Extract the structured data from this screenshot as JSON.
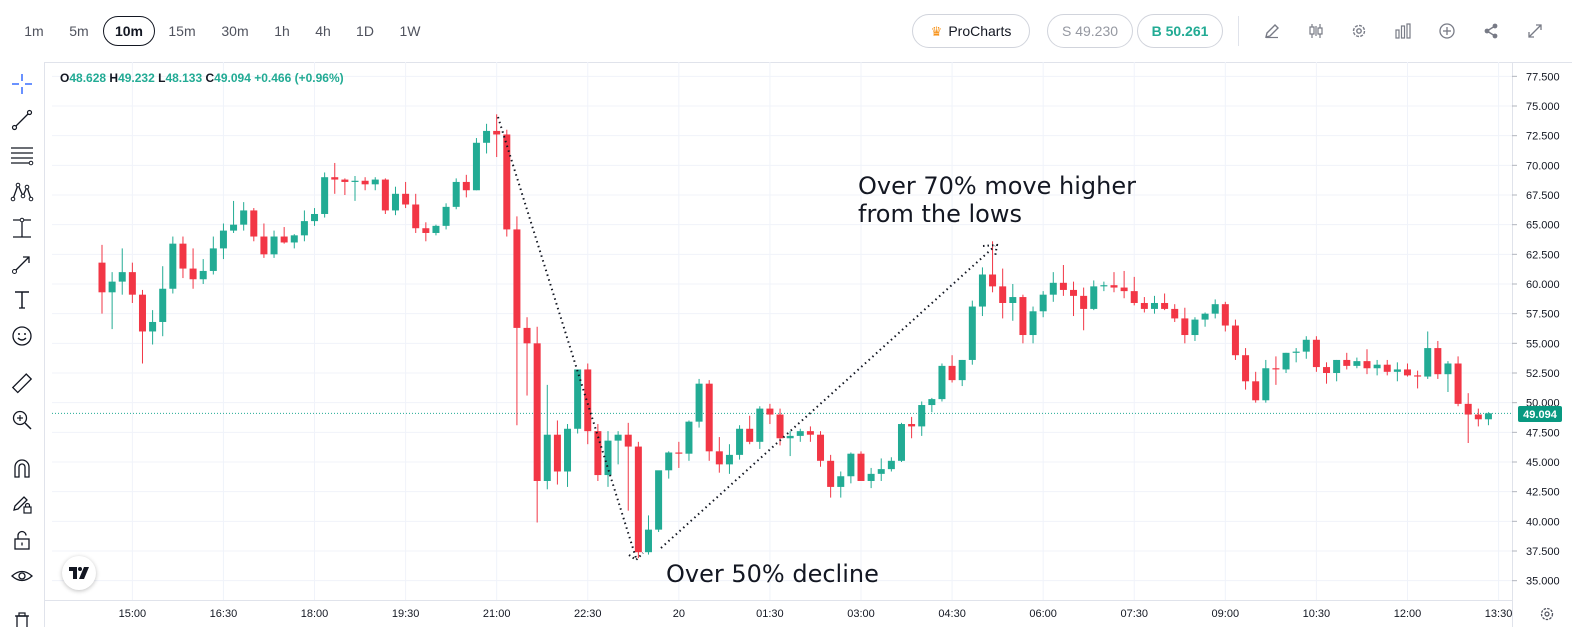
{
  "timeframes": [
    "1m",
    "5m",
    "10m",
    "15m",
    "30m",
    "1h",
    "4h",
    "1D",
    "1W"
  ],
  "active_timeframe": "10m",
  "procharts_label": "ProCharts",
  "sell_label": "S 49.230",
  "buy_label": "B 50.261",
  "ohlc": {
    "o_key": "O",
    "o": "48.628",
    "h_key": "H",
    "h": "49.232",
    "l_key": "L",
    "l": "48.133",
    "c_key": "C",
    "c": "49.094",
    "change": "+0.466 (+0.96%)"
  },
  "colors": {
    "up": "#22ab94",
    "down": "#f23645",
    "accent": "#089981",
    "grid": "#f0f3fa",
    "text": "#131722"
  },
  "toolbar_icons": [
    "pencil-icon",
    "candles-icon",
    "gear-icon",
    "bar-stats-icon",
    "plus-circle-icon",
    "share-icon",
    "fullscreen-icon"
  ],
  "left_tools": [
    "crosshair-icon",
    "trendline-icon",
    "fib-lines-icon",
    "pattern-icon",
    "measure-icon",
    "arrow-icon",
    "text-icon",
    "emoji-icon",
    "ruler-icon",
    "zoom-in-icon",
    "magnet-icon",
    "lock-pencil-icon",
    "lock-icon",
    "eye-icon",
    "trash-icon"
  ],
  "annotations": {
    "decline": "Over 50% decline",
    "rise_line1": "Over 70% move higher",
    "rise_line2": "from the lows"
  },
  "chart_data": {
    "type": "candlestick",
    "y_ticks": [
      "77.500",
      "75.000",
      "72.500",
      "70.000",
      "67.500",
      "65.000",
      "62.500",
      "60.000",
      "57.500",
      "55.000",
      "52.500",
      "50.000",
      "47.500",
      "45.000",
      "42.500",
      "40.000",
      "37.500",
      "35.000"
    ],
    "ylim": [
      33.0,
      78.5
    ],
    "x_ticks": [
      "15:00",
      "16:30",
      "18:00",
      "19:30",
      "21:00",
      "22:30",
      "20",
      "01:30",
      "03:00",
      "04:30",
      "06:00",
      "07:30",
      "09:00",
      "10:30",
      "12:00",
      "13:30"
    ],
    "x_tick_first_bar": 3,
    "bars_per_tick": 9,
    "last_price": 49.094,
    "last_price_label": "49.094",
    "ohlc": [
      [
        61.8,
        63.3,
        57.5,
        59.3
      ],
      [
        59.3,
        61.0,
        56.2,
        60.2
      ],
      [
        60.2,
        63.0,
        59.1,
        61.0
      ],
      [
        61.0,
        61.8,
        58.4,
        59.1
      ],
      [
        59.1,
        59.5,
        53.3,
        56.0
      ],
      [
        56.0,
        57.8,
        54.9,
        56.8
      ],
      [
        56.8,
        61.5,
        55.6,
        59.6
      ],
      [
        59.6,
        64.0,
        59.2,
        63.4
      ],
      [
        63.4,
        64.0,
        60.5,
        61.3
      ],
      [
        61.3,
        63.0,
        59.6,
        60.4
      ],
      [
        60.4,
        62.1,
        60.0,
        61.1
      ],
      [
        61.1,
        64.0,
        60.8,
        63.0
      ],
      [
        63.0,
        65.1,
        62.1,
        64.5
      ],
      [
        64.5,
        67.0,
        64.3,
        65.0
      ],
      [
        65.0,
        66.9,
        64.5,
        66.2
      ],
      [
        66.2,
        66.4,
        63.6,
        64.0
      ],
      [
        64.0,
        65.1,
        62.2,
        62.5
      ],
      [
        62.5,
        64.5,
        62.2,
        64.0
      ],
      [
        64.0,
        64.8,
        63.4,
        63.5
      ],
      [
        63.5,
        64.2,
        63.0,
        64.1
      ],
      [
        64.1,
        66.2,
        63.6,
        65.3
      ],
      [
        65.3,
        66.4,
        64.9,
        65.9
      ],
      [
        65.9,
        69.4,
        65.6,
        69.0
      ],
      [
        69.0,
        70.2,
        67.6,
        68.8
      ],
      [
        68.8,
        68.9,
        67.5,
        68.6
      ],
      [
        68.6,
        69.1,
        67.0,
        68.7
      ],
      [
        68.7,
        69.0,
        67.9,
        68.4
      ],
      [
        68.4,
        69.0,
        67.9,
        68.8
      ],
      [
        68.8,
        68.9,
        65.9,
        66.2
      ],
      [
        66.2,
        68.2,
        65.8,
        67.6
      ],
      [
        67.6,
        68.6,
        66.4,
        66.7
      ],
      [
        66.7,
        67.6,
        64.3,
        64.7
      ],
      [
        64.7,
        65.2,
        63.6,
        64.3
      ],
      [
        64.3,
        65.0,
        64.1,
        64.9
      ],
      [
        64.9,
        66.8,
        64.6,
        66.5
      ],
      [
        66.5,
        68.9,
        66.3,
        68.6
      ],
      [
        68.6,
        69.2,
        67.3,
        67.9
      ],
      [
        67.9,
        72.3,
        67.9,
        71.9
      ],
      [
        71.9,
        73.5,
        71.0,
        72.9
      ],
      [
        72.9,
        74.3,
        70.7,
        72.6
      ],
      [
        72.6,
        73.0,
        64.0,
        64.6
      ],
      [
        64.6,
        65.7,
        48.1,
        56.3
      ],
      [
        56.3,
        57.2,
        50.6,
        55.0
      ],
      [
        55.0,
        56.4,
        39.9,
        43.4
      ],
      [
        43.4,
        51.5,
        42.7,
        47.3
      ],
      [
        47.3,
        48.5,
        43.1,
        44.2
      ],
      [
        44.2,
        48.2,
        42.9,
        47.8
      ],
      [
        47.8,
        52.5,
        47.4,
        52.8
      ],
      [
        52.8,
        53.3,
        46.5,
        47.6
      ],
      [
        47.6,
        48.2,
        43.4,
        43.9
      ],
      [
        43.9,
        47.6,
        42.9,
        46.8
      ],
      [
        46.8,
        47.6,
        44.8,
        47.3
      ],
      [
        47.3,
        48.3,
        40.9,
        46.3
      ],
      [
        46.3,
        46.7,
        36.9,
        37.4
      ],
      [
        37.4,
        40.5,
        37.2,
        39.3
      ],
      [
        39.3,
        44.1,
        39.1,
        44.3
      ],
      [
        44.3,
        45.9,
        43.6,
        45.8
      ],
      [
        45.8,
        46.7,
        44.5,
        45.7
      ],
      [
        45.7,
        48.5,
        45.1,
        48.4
      ],
      [
        48.4,
        52.0,
        47.9,
        51.6
      ],
      [
        51.6,
        51.9,
        45.1,
        45.9
      ],
      [
        45.9,
        47.1,
        44.1,
        44.8
      ],
      [
        44.8,
        46.5,
        44.0,
        45.6
      ],
      [
        45.6,
        48.1,
        45.2,
        47.8
      ],
      [
        47.8,
        48.9,
        46.5,
        46.7
      ],
      [
        46.7,
        49.7,
        46.1,
        49.5
      ],
      [
        49.5,
        49.9,
        48.2,
        49.0
      ],
      [
        49.0,
        49.5,
        46.4,
        47.0
      ],
      [
        47.0,
        47.6,
        45.5,
        47.2
      ],
      [
        47.2,
        47.8,
        46.7,
        47.6
      ],
      [
        47.6,
        48.0,
        46.7,
        47.3
      ],
      [
        47.3,
        47.6,
        44.6,
        45.1
      ],
      [
        45.1,
        45.6,
        42.0,
        42.9
      ],
      [
        42.9,
        44.2,
        42.0,
        43.8
      ],
      [
        43.8,
        45.8,
        43.2,
        45.7
      ],
      [
        45.7,
        45.9,
        43.4,
        43.4
      ],
      [
        43.4,
        44.5,
        42.8,
        44.0
      ],
      [
        44.0,
        45.3,
        43.4,
        44.4
      ],
      [
        44.4,
        45.4,
        44.2,
        45.1
      ],
      [
        45.1,
        48.3,
        45.0,
        48.2
      ],
      [
        48.2,
        48.8,
        47.0,
        48.0
      ],
      [
        48.0,
        50.1,
        47.2,
        49.8
      ],
      [
        49.8,
        50.4,
        49.2,
        50.3
      ],
      [
        50.3,
        53.3,
        50.1,
        53.1
      ],
      [
        53.1,
        54.0,
        51.7,
        51.9
      ],
      [
        51.9,
        53.6,
        51.4,
        53.6
      ],
      [
        53.6,
        58.6,
        53.2,
        58.1
      ],
      [
        58.1,
        61.4,
        57.3,
        60.8
      ],
      [
        60.8,
        63.6,
        59.3,
        59.8
      ],
      [
        59.8,
        61.3,
        57.1,
        58.4
      ],
      [
        58.4,
        60.0,
        56.9,
        58.9
      ],
      [
        58.9,
        59.1,
        55.0,
        55.7
      ],
      [
        55.7,
        58.1,
        55.0,
        57.7
      ],
      [
        57.7,
        59.4,
        57.2,
        59.1
      ],
      [
        59.1,
        61.0,
        58.5,
        60.1
      ],
      [
        60.1,
        61.6,
        59.0,
        59.5
      ],
      [
        59.5,
        60.2,
        57.3,
        59.0
      ],
      [
        59.0,
        59.7,
        56.1,
        57.9
      ],
      [
        57.9,
        60.3,
        57.8,
        59.8
      ],
      [
        59.8,
        60.2,
        59.4,
        59.9
      ],
      [
        59.9,
        61.0,
        59.3,
        59.7
      ],
      [
        59.7,
        61.1,
        58.8,
        59.4
      ],
      [
        59.4,
        60.6,
        58.2,
        58.4
      ],
      [
        58.4,
        58.9,
        57.6,
        57.9
      ],
      [
        57.9,
        59.0,
        57.5,
        58.4
      ],
      [
        58.4,
        59.2,
        57.8,
        57.9
      ],
      [
        57.9,
        58.3,
        56.8,
        57.1
      ],
      [
        57.1,
        58.0,
        55.0,
        55.7
      ],
      [
        55.7,
        57.2,
        55.2,
        57.0
      ],
      [
        57.0,
        57.6,
        56.4,
        57.5
      ],
      [
        57.5,
        58.7,
        57.1,
        58.3
      ],
      [
        58.3,
        58.5,
        56.0,
        56.5
      ],
      [
        56.5,
        57.0,
        53.6,
        54.0
      ],
      [
        54.0,
        54.6,
        51.1,
        51.8
      ],
      [
        51.8,
        52.6,
        50.0,
        50.2
      ],
      [
        50.2,
        53.6,
        50.0,
        52.9
      ],
      [
        52.9,
        53.9,
        51.5,
        52.8
      ],
      [
        52.8,
        54.2,
        52.5,
        54.2
      ],
      [
        54.2,
        54.6,
        53.4,
        54.3
      ],
      [
        54.3,
        55.6,
        53.7,
        55.3
      ],
      [
        55.3,
        55.6,
        52.6,
        53.0
      ],
      [
        53.0,
        53.4,
        51.6,
        52.5
      ],
      [
        52.5,
        53.6,
        51.8,
        53.6
      ],
      [
        53.6,
        54.2,
        52.8,
        53.1
      ],
      [
        53.1,
        53.8,
        52.9,
        53.5
      ],
      [
        53.5,
        54.5,
        52.4,
        52.9
      ],
      [
        52.9,
        53.6,
        52.3,
        53.2
      ],
      [
        53.2,
        53.6,
        52.3,
        52.6
      ],
      [
        52.6,
        53.4,
        51.8,
        52.8
      ],
      [
        52.8,
        53.3,
        52.2,
        52.3
      ],
      [
        52.3,
        52.7,
        51.2,
        52.2
      ],
      [
        52.2,
        56.0,
        52.0,
        54.6
      ],
      [
        54.6,
        55.2,
        52.0,
        52.4
      ],
      [
        52.4,
        53.5,
        50.9,
        53.3
      ],
      [
        53.3,
        53.9,
        49.7,
        49.9
      ],
      [
        49.9,
        50.8,
        46.6,
        49.0
      ],
      [
        49.0,
        49.5,
        48.0,
        48.6
      ],
      [
        48.6,
        49.2,
        48.1,
        49.1
      ]
    ]
  }
}
